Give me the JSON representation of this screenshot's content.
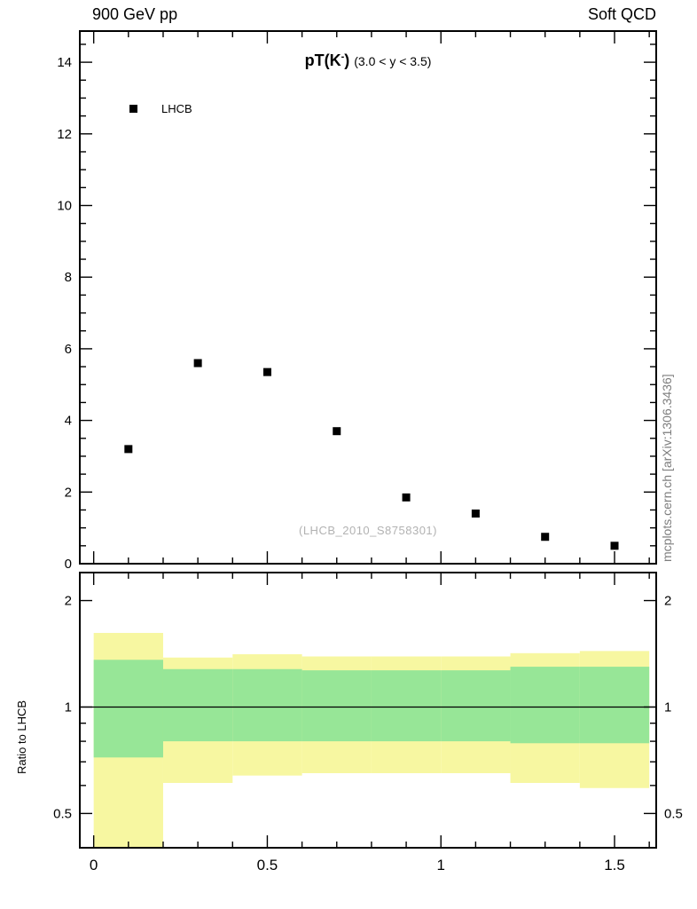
{
  "header": {
    "left": "900 GeV pp",
    "right": "Soft QCD"
  },
  "title": {
    "prefix": "pT(K",
    "sup": "-",
    "close": ")",
    "condition": "(3.0 < y < 3.5)"
  },
  "legend": {
    "label": "LHCB",
    "marker_color": "#000000"
  },
  "watermark": "(LHCB_2010_S8758301)",
  "side_note": "mcplots.cern.ch [arXiv:1306.3436]",
  "chart_data": {
    "type": "scatter",
    "title": "pT(K-) (3.0 < y < 3.5)",
    "xlabel": "",
    "xlim": [
      -0.04,
      1.62
    ],
    "x_ticks": [
      0,
      0.5,
      1,
      1.5
    ],
    "x_tick_labels": [
      "0",
      "0.5",
      "1",
      "1.5"
    ],
    "x_minor_step": 0.1,
    "grid": false,
    "legend_position": "top-left-inside",
    "main_panel": {
      "ylim": [
        0,
        14.87
      ],
      "y_ticks": [
        0,
        2,
        4,
        6,
        8,
        10,
        12,
        14
      ],
      "y_minor_step": 0.5,
      "series": [
        {
          "name": "LHCB",
          "marker": "filled-square",
          "color": "#000000",
          "x": [
            0.1,
            0.3,
            0.5,
            0.7,
            0.9,
            1.1,
            1.3,
            1.5
          ],
          "y": [
            3.2,
            5.6,
            5.35,
            3.7,
            1.85,
            1.4,
            0.75,
            0.5
          ]
        }
      ]
    },
    "ratio_panel": {
      "ylabel": "Ratio to LHCB",
      "yscale": "log",
      "ylim": [
        0.4,
        2.4
      ],
      "y_ticks": [
        0.5,
        1,
        2
      ],
      "y_tick_labels": [
        "0.5",
        "1",
        "2"
      ],
      "y_minor_ticks": [
        0.6,
        0.7,
        0.8,
        0.9
      ],
      "unity_line": 1,
      "bin_edges": [
        0,
        0.2,
        0.4,
        0.6,
        0.8,
        1.0,
        1.2,
        1.4,
        1.6
      ],
      "outer_band": [
        [
          0.3,
          1.62
        ],
        [
          0.61,
          1.38
        ],
        [
          0.64,
          1.41
        ],
        [
          0.65,
          1.39
        ],
        [
          0.65,
          1.39
        ],
        [
          0.65,
          1.39
        ],
        [
          0.61,
          1.42
        ],
        [
          0.59,
          1.44
        ]
      ],
      "inner_band": [
        [
          0.72,
          1.36
        ],
        [
          0.8,
          1.28
        ],
        [
          0.8,
          1.28
        ],
        [
          0.8,
          1.27
        ],
        [
          0.8,
          1.27
        ],
        [
          0.8,
          1.27
        ],
        [
          0.79,
          1.3
        ],
        [
          0.79,
          1.3
        ]
      ],
      "outer_color": "#f7f7a1",
      "inner_color": "#97e697"
    }
  }
}
